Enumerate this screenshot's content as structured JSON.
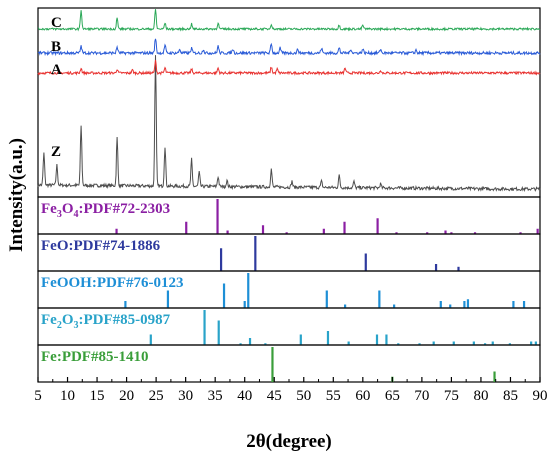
{
  "chart_data": {
    "type": "line",
    "xlabel": "2θ(degree)",
    "ylabel": "Intensity(a.u.)",
    "xlim": [
      5,
      90
    ],
    "xticks": [
      5,
      10,
      15,
      20,
      25,
      30,
      35,
      40,
      45,
      50,
      55,
      60,
      65,
      70,
      75,
      80,
      85,
      90
    ],
    "series": [
      {
        "name": "Z",
        "color": "#4d4d4d",
        "peaks": [
          [
            6.0,
            32
          ],
          [
            8.2,
            20
          ],
          [
            12.3,
            60
          ],
          [
            18.4,
            48
          ],
          [
            24.9,
            130
          ],
          [
            26.5,
            40
          ],
          [
            31.0,
            27
          ],
          [
            32.3,
            14
          ],
          [
            35.5,
            10
          ],
          [
            37.0,
            6
          ],
          [
            44.5,
            18
          ],
          [
            48.0,
            6
          ],
          [
            53.0,
            6
          ],
          [
            56.0,
            12
          ],
          [
            58.5,
            6
          ],
          [
            63.0,
            4
          ]
        ]
      },
      {
        "name": "A",
        "color": "#e8312f",
        "peaks": [
          [
            12.3,
            5
          ],
          [
            18.4,
            4
          ],
          [
            21.0,
            3
          ],
          [
            24.9,
            12
          ],
          [
            26.5,
            5
          ],
          [
            31.0,
            4
          ],
          [
            35.5,
            5
          ],
          [
            44.5,
            6
          ],
          [
            45.5,
            4
          ],
          [
            57.0,
            5
          ],
          [
            63.0,
            3
          ]
        ]
      },
      {
        "name": "B",
        "color": "#2a5bd7",
        "peaks": [
          [
            12.3,
            7
          ],
          [
            18.4,
            6
          ],
          [
            24.9,
            15
          ],
          [
            26.5,
            8
          ],
          [
            29.0,
            4
          ],
          [
            31.0,
            5
          ],
          [
            33.0,
            4
          ],
          [
            35.5,
            7
          ],
          [
            38.0,
            4
          ],
          [
            44.5,
            9
          ],
          [
            46.0,
            5
          ],
          [
            49.0,
            4
          ],
          [
            53.0,
            5
          ],
          [
            56.0,
            5
          ],
          [
            58.0,
            4
          ],
          [
            60.0,
            4
          ],
          [
            63.0,
            4
          ],
          [
            69.0,
            3
          ]
        ]
      },
      {
        "name": "C",
        "color": "#2aa857",
        "peaks": [
          [
            12.3,
            19
          ],
          [
            18.4,
            11
          ],
          [
            24.9,
            20
          ],
          [
            26.5,
            6
          ],
          [
            31.0,
            5
          ],
          [
            35.5,
            6
          ],
          [
            44.5,
            5
          ],
          [
            56.0,
            4
          ],
          [
            60.0,
            4
          ]
        ]
      }
    ],
    "references": [
      {
        "label_main": "Fe",
        "sub1": "3",
        "mid": "O",
        "sub2": "4",
        "tail": ":PDF#72-2303",
        "color": "#8b1fa3",
        "lines": [
          [
            18.3,
            0.15
          ],
          [
            30.1,
            0.35
          ],
          [
            35.4,
            1.0
          ],
          [
            37.1,
            0.1
          ],
          [
            43.1,
            0.25
          ],
          [
            47.1,
            0.05
          ],
          [
            53.4,
            0.15
          ],
          [
            56.9,
            0.35
          ],
          [
            62.5,
            0.45
          ],
          [
            65.7,
            0.05
          ],
          [
            70.9,
            0.05
          ],
          [
            74.0,
            0.1
          ],
          [
            75.0,
            0.05
          ],
          [
            79.0,
            0.05
          ],
          [
            86.7,
            0.05
          ],
          [
            89.6,
            0.15
          ]
        ]
      },
      {
        "label_main": "FeO:PDF#74-1886",
        "sub1": "",
        "mid": "",
        "sub2": "",
        "tail": "",
        "color": "#2e3a9e",
        "lines": [
          [
            36.0,
            0.65
          ],
          [
            41.8,
            1.0
          ],
          [
            60.5,
            0.5
          ],
          [
            72.4,
            0.2
          ],
          [
            76.2,
            0.12
          ]
        ]
      },
      {
        "label_main": "FeOOH:PDF#76-0123",
        "sub1": "",
        "mid": "",
        "sub2": "",
        "tail": "",
        "color": "#1e8fd6",
        "lines": [
          [
            19.8,
            0.2
          ],
          [
            27.0,
            0.5
          ],
          [
            36.5,
            0.7
          ],
          [
            40.0,
            0.2
          ],
          [
            40.6,
            1.0
          ],
          [
            53.9,
            0.5
          ],
          [
            57.0,
            0.1
          ],
          [
            62.8,
            0.5
          ],
          [
            65.3,
            0.1
          ],
          [
            73.2,
            0.2
          ],
          [
            74.8,
            0.1
          ],
          [
            77.2,
            0.2
          ],
          [
            77.8,
            0.25
          ],
          [
            85.5,
            0.2
          ],
          [
            87.3,
            0.2
          ]
        ]
      },
      {
        "label_main": "Fe",
        "sub1": "2",
        "mid": "O",
        "sub2": "3",
        "tail": ":PDF#85-0987",
        "color": "#29a3c9",
        "lines": [
          [
            24.1,
            0.3
          ],
          [
            33.2,
            1.0
          ],
          [
            35.6,
            0.7
          ],
          [
            39.3,
            0.05
          ],
          [
            40.9,
            0.2
          ],
          [
            43.5,
            0.05
          ],
          [
            49.5,
            0.3
          ],
          [
            54.1,
            0.4
          ],
          [
            57.6,
            0.1
          ],
          [
            62.4,
            0.3
          ],
          [
            64.0,
            0.3
          ],
          [
            66.0,
            0.05
          ],
          [
            69.6,
            0.05
          ],
          [
            72.0,
            0.1
          ],
          [
            75.4,
            0.1
          ],
          [
            78.8,
            0.1
          ],
          [
            80.7,
            0.05
          ],
          [
            82.0,
            0.1
          ],
          [
            84.9,
            0.05
          ],
          [
            88.5,
            0.1
          ],
          [
            89.3,
            0.1
          ]
        ]
      },
      {
        "label_main": "Fe:PDF#85-1410",
        "sub1": "",
        "mid": "",
        "sub2": "",
        "tail": "",
        "color": "#3a9e3a",
        "lines": [
          [
            44.7,
            1.0
          ],
          [
            65.0,
            0.15
          ],
          [
            82.3,
            0.3
          ]
        ]
      }
    ]
  }
}
